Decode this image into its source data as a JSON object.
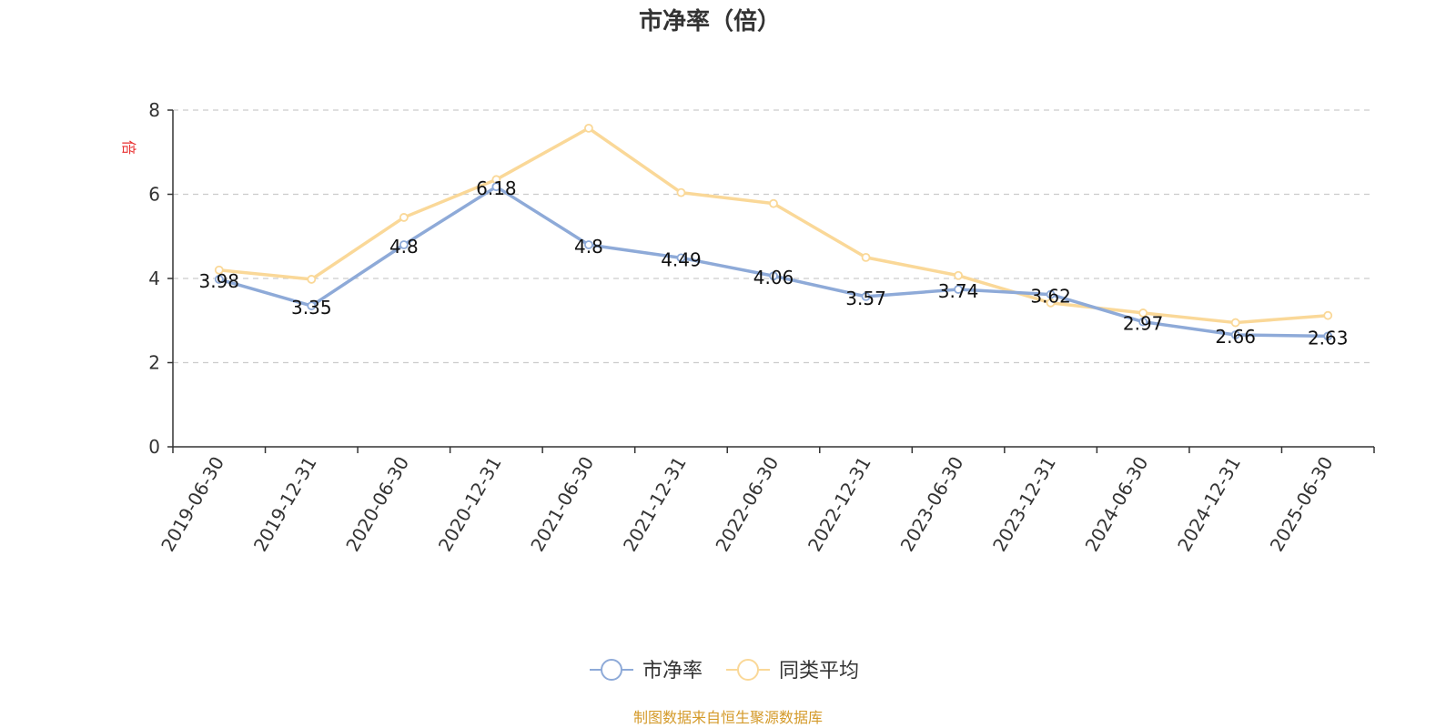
{
  "chart_data": {
    "type": "line",
    "title": "市净率（倍）",
    "ylabel": "倍",
    "ylim": [
      0,
      8
    ],
    "yticks": [
      0,
      2,
      4,
      6,
      8
    ],
    "grid": true,
    "legend_position": "bottom",
    "categories": [
      "2019-06-30",
      "2019-12-31",
      "2020-06-30",
      "2020-12-31",
      "2021-06-30",
      "2021-12-31",
      "2022-06-30",
      "2022-12-31",
      "2023-06-30",
      "2023-12-31",
      "2024-06-30",
      "2024-12-31",
      "2025-06-30"
    ],
    "series": [
      {
        "name": "市净率",
        "color": "#8eaad8",
        "values": [
          3.98,
          3.35,
          4.8,
          6.18,
          4.8,
          4.49,
          4.06,
          3.57,
          3.74,
          3.62,
          2.97,
          2.66,
          2.63
        ],
        "labels": [
          "3.98",
          "3.35",
          "4.8",
          "6.18",
          "4.8",
          "4.49",
          "4.06",
          "3.57",
          "3.74",
          "3.62",
          "2.97",
          "2.66",
          "2.63"
        ]
      },
      {
        "name": "同类平均",
        "color": "#fad898",
        "values": [
          4.2,
          3.98,
          5.45,
          6.35,
          7.57,
          6.04,
          5.78,
          4.5,
          4.07,
          3.42,
          3.18,
          2.95,
          3.12
        ]
      }
    ]
  },
  "source": "制图数据来自恒生聚源数据库",
  "colors": {
    "unit": "#e83030",
    "source": "#d49a2a",
    "axis": "#333333",
    "grid": "#cccccc"
  }
}
